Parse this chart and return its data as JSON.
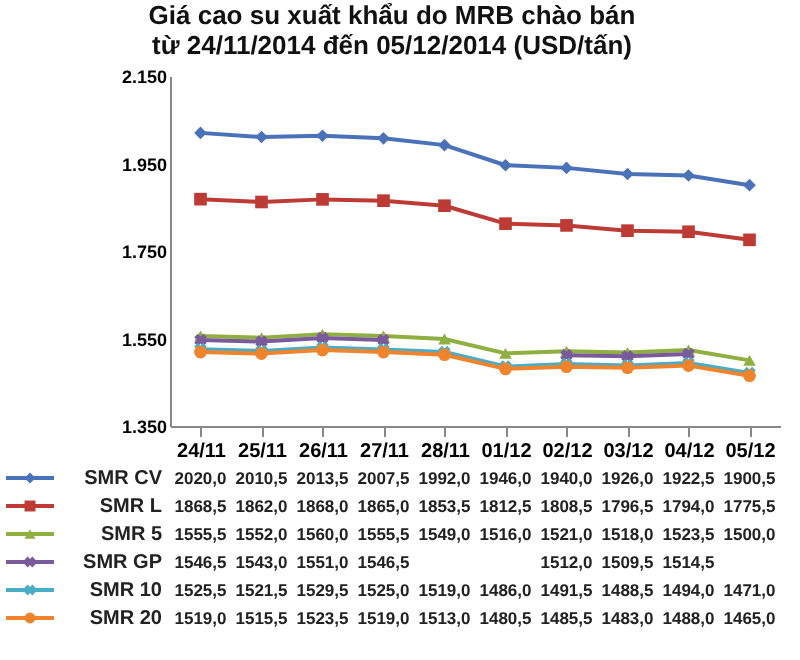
{
  "chart_data": {
    "type": "line",
    "title": "Giá cao su xuất khẩu do MRB chào bán\ntừ 24/11/2014 đến 05/12/2014  (USD/tấn)",
    "categories": [
      "24/11",
      "25/11",
      "26/11",
      "27/11",
      "28/11",
      "01/12",
      "02/12",
      "03/12",
      "04/12",
      "05/12"
    ],
    "ylim": [
      1350,
      2150
    ],
    "yticks": [
      {
        "value": 1350,
        "label": "1.350"
      },
      {
        "value": 1550,
        "label": "1.550"
      },
      {
        "value": 1750,
        "label": "1.750"
      },
      {
        "value": 1950,
        "label": "1.950"
      },
      {
        "value": 2150,
        "label": "2.150"
      }
    ],
    "grid": false,
    "legend": "bottom",
    "line_style": "solid",
    "series": [
      {
        "name": "SMR CV",
        "color": "#4a72b8",
        "marker": "diamond",
        "values": [
          2020.0,
          2010.5,
          2013.5,
          2007.5,
          1992.0,
          1946.0,
          1940.0,
          1926.0,
          1922.5,
          1900.5
        ],
        "value_labels": [
          "2020,0",
          "2010,5",
          "2013,5",
          "2007,5",
          "1992,0",
          "1946,0",
          "1940,0",
          "1926,0",
          "1922,5",
          "1900,5"
        ]
      },
      {
        "name": "SMR L",
        "color": "#be3b35",
        "marker": "square",
        "values": [
          1868.5,
          1862.0,
          1868.0,
          1865.0,
          1853.5,
          1812.5,
          1808.5,
          1796.5,
          1794.0,
          1775.5
        ],
        "value_labels": [
          "1868,5",
          "1862,0",
          "1868,0",
          "1865,0",
          "1853,5",
          "1812,5",
          "1808,5",
          "1796,5",
          "1794,0",
          "1775,5"
        ]
      },
      {
        "name": "SMR  5",
        "color": "#8fb040",
        "marker": "triangle",
        "values": [
          1555.5,
          1552.0,
          1560.0,
          1555.5,
          1549.0,
          1516.0,
          1521.0,
          1518.0,
          1523.5,
          1500.0
        ],
        "value_labels": [
          "1555,5",
          "1552,0",
          "1560,0",
          "1555,5",
          "1549,0",
          "1516,0",
          "1521,0",
          "1518,0",
          "1523,5",
          "1500,0"
        ]
      },
      {
        "name": "SMR GP",
        "color": "#7a5a9a",
        "marker": "cross",
        "values": [
          1546.5,
          1543.0,
          1551.0,
          1546.5,
          null,
          null,
          1512.0,
          1509.5,
          1514.5,
          null
        ],
        "value_labels": [
          "1546,5",
          "1543,0",
          "1551,0",
          "1546,5",
          null,
          null,
          "1512,0",
          "1509,5",
          "1514,5",
          null
        ]
      },
      {
        "name": "SMR  10",
        "color": "#4bacc6",
        "marker": "cross",
        "values": [
          1525.5,
          1521.5,
          1529.5,
          1525.0,
          1519.0,
          1486.0,
          1491.5,
          1488.5,
          1494.0,
          1471.0
        ],
        "value_labels": [
          "1525,5",
          "1521,5",
          "1529,5",
          "1525,0",
          "1519,0",
          "1486,0",
          "1491,5",
          "1488,5",
          "1494,0",
          "1471,0"
        ]
      },
      {
        "name": "SMR 20",
        "color": "#f0842c",
        "marker": "circle",
        "values": [
          1519.0,
          1515.5,
          1523.5,
          1519.0,
          1513.0,
          1480.5,
          1485.5,
          1483.0,
          1488.0,
          1465.0
        ],
        "value_labels": [
          "1519,0",
          "1515,5",
          "1523,5",
          "1519,0",
          "1513,0",
          "1480,5",
          "1485,5",
          "1483,0",
          "1488,0",
          "1465,0"
        ]
      }
    ]
  }
}
